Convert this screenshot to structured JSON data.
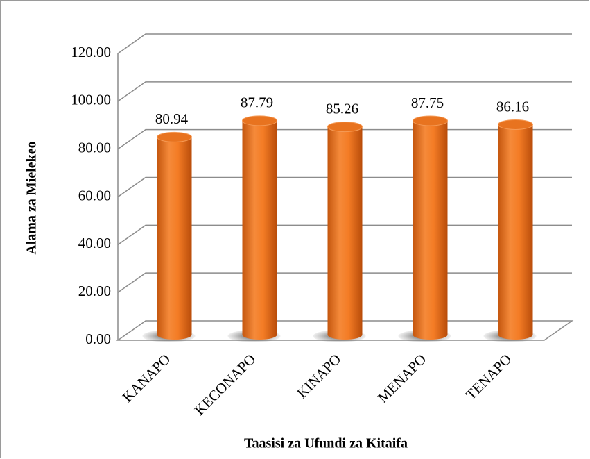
{
  "chart_data": {
    "type": "bar",
    "categories": [
      "KANAPO",
      "KECONAPO",
      "KINAPO",
      "MENAPO",
      "TENAPO"
    ],
    "values": [
      80.94,
      87.79,
      85.26,
      87.75,
      86.16
    ],
    "color": "#f07a22",
    "x_label": "Taasisi za Ufundi za Kitaifa",
    "y_label": "Alama za Mielekeo",
    "ylim": [
      0,
      120
    ],
    "yticks": [
      {
        "value": 0,
        "label": "0.00"
      },
      {
        "value": 20,
        "label": "20.00"
      },
      {
        "value": 40,
        "label": "40.00"
      },
      {
        "value": 60,
        "label": "60.00"
      },
      {
        "value": 80,
        "label": "80.00"
      },
      {
        "value": 100,
        "label": "100.00"
      },
      {
        "value": 120,
        "label": "120.00"
      }
    ],
    "grid": true
  }
}
